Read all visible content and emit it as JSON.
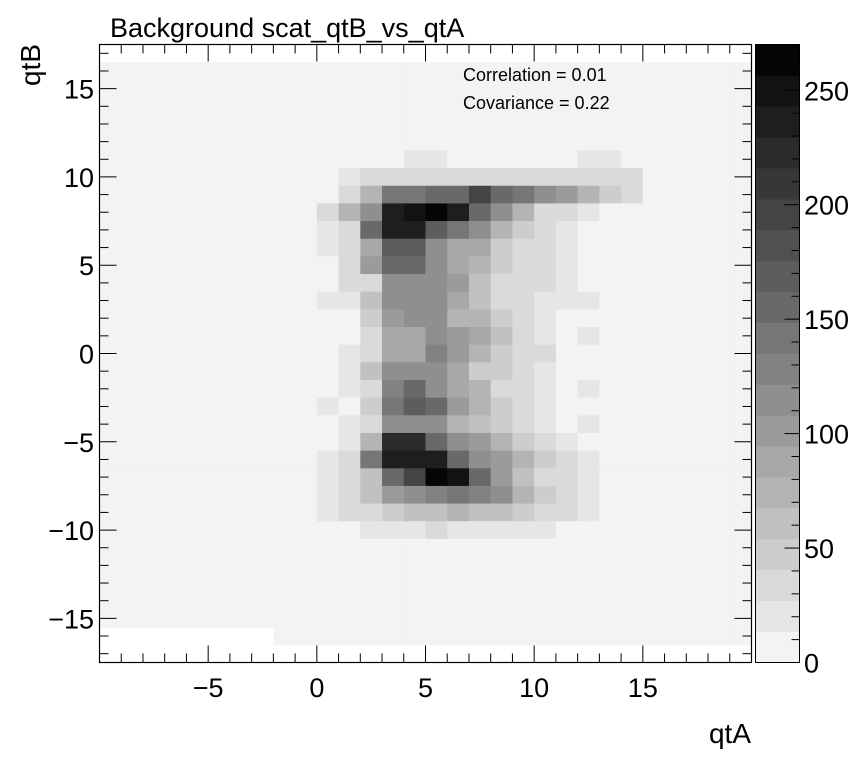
{
  "chart_data": {
    "type": "heatmap",
    "title": "Background scat_qtB_vs_qtA",
    "xlabel": "qtA",
    "ylabel": "qtB",
    "xlim": [
      -10,
      20
    ],
    "ylim": [
      -17.5,
      17.5
    ],
    "zlim": [
      0,
      270
    ],
    "x_ticks": [
      -5,
      0,
      5,
      10,
      15
    ],
    "y_ticks": [
      -15,
      -10,
      -5,
      0,
      5,
      10,
      15
    ],
    "z_ticks": [
      0,
      50,
      100,
      150,
      200,
      250
    ],
    "x_tick_labels": [
      "−5",
      "0",
      "5",
      "10",
      "15"
    ],
    "y_tick_labels": [
      "−15",
      "−10",
      "−5",
      "0",
      "5",
      "10",
      "15"
    ],
    "z_tick_labels": [
      "0",
      "50",
      "100",
      "150",
      "200",
      "250"
    ],
    "colormap": "grayscale",
    "palette_levels": 20,
    "annotations": [
      "Correlation = 0.01",
      "Covariance = 0.22"
    ],
    "x_bin_edges": [
      -10,
      -9,
      -8,
      -7,
      -6,
      -5,
      -4,
      -3,
      -2,
      -1,
      0,
      1,
      2,
      3,
      4,
      5,
      6,
      7,
      8,
      9,
      10,
      11,
      12,
      13,
      14,
      15,
      16,
      17,
      18,
      19,
      20
    ],
    "y_bin_edges": [
      -17.5,
      -16.5,
      -15.5,
      -14.5,
      -13.5,
      -12.5,
      -11.5,
      -10.5,
      -9.5,
      -8.5,
      -7.5,
      -6.5,
      -5.5,
      -4.5,
      -3.5,
      -2.5,
      -1.5,
      -0.5,
      0.5,
      1.5,
      2.5,
      3.5,
      4.5,
      5.5,
      6.5,
      7.5,
      8.5,
      9.5,
      10.5,
      11.5,
      12.5,
      13.5,
      14.5,
      15.5,
      16.5,
      17.5
    ],
    "z_note": "z rows ordered from top (y=17) to bottom (y=-17); columns from x=-9.5 to x=19.5",
    "z": [
      [
        0,
        0,
        0,
        0,
        0,
        0,
        0,
        0,
        0,
        0,
        0,
        0,
        0,
        0,
        0,
        0,
        0,
        0,
        0,
        0,
        0,
        0,
        0,
        0,
        0,
        0,
        0,
        0,
        0,
        0
      ],
      [
        1,
        1,
        1,
        1,
        1,
        1,
        1,
        1,
        1,
        1,
        1,
        1,
        4,
        1,
        1,
        1,
        1,
        1,
        1,
        1,
        1,
        1,
        1,
        1,
        1,
        1,
        1,
        1,
        1,
        1
      ],
      [
        1,
        1,
        1,
        1,
        1,
        1,
        1,
        1,
        1,
        1,
        1,
        1,
        1,
        1,
        1,
        1,
        1,
        1,
        1,
        1,
        1,
        1,
        1,
        1,
        1,
        1,
        1,
        1,
        1,
        1
      ],
      [
        1,
        1,
        1,
        1,
        1,
        4,
        4,
        4,
        4,
        4,
        1,
        1,
        1,
        1,
        1,
        1,
        1,
        1,
        1,
        1,
        1,
        1,
        1,
        1,
        1,
        1,
        1,
        1,
        1,
        1
      ],
      [
        4,
        4,
        4,
        4,
        4,
        1,
        1,
        1,
        1,
        4,
        4,
        4,
        4,
        4,
        4,
        4,
        4,
        4,
        4,
        4,
        4,
        4,
        4,
        4,
        4,
        4,
        4,
        4,
        4,
        4
      ],
      [
        4,
        4,
        4,
        1,
        4,
        4,
        4,
        4,
        4,
        4,
        4,
        4,
        4,
        4,
        4,
        4,
        4,
        4,
        4,
        4,
        4,
        4,
        4,
        4,
        4,
        4,
        1,
        4,
        4,
        4
      ],
      [
        4,
        1,
        4,
        4,
        4,
        4,
        4,
        4,
        4,
        4,
        12,
        12,
        12,
        12,
        20,
        20,
        12,
        12,
        12,
        12,
        12,
        12,
        20,
        20,
        12,
        4,
        4,
        4,
        4,
        4
      ],
      [
        4,
        4,
        4,
        4,
        4,
        4,
        4,
        4,
        4,
        4,
        12,
        20,
        30,
        30,
        30,
        30,
        30,
        30,
        30,
        30,
        30,
        30,
        30,
        40,
        30,
        4,
        4,
        4,
        4,
        4
      ],
      [
        1,
        4,
        4,
        4,
        4,
        4,
        4,
        4,
        4,
        12,
        12,
        40,
        70,
        140,
        140,
        160,
        160,
        190,
        150,
        140,
        120,
        100,
        80,
        50,
        40,
        4,
        1,
        4,
        4,
        4
      ],
      [
        4,
        4,
        4,
        1,
        4,
        1,
        4,
        4,
        4,
        12,
        40,
        70,
        110,
        240,
        255,
        270,
        235,
        150,
        120,
        70,
        40,
        30,
        20,
        12,
        4,
        4,
        1,
        4,
        4,
        4
      ],
      [
        1,
        4,
        4,
        4,
        4,
        1,
        4,
        4,
        4,
        12,
        20,
        40,
        150,
        235,
        235,
        170,
        140,
        120,
        70,
        50,
        30,
        20,
        12,
        12,
        4,
        4,
        4,
        4,
        4,
        4
      ],
      [
        4,
        4,
        4,
        4,
        4,
        4,
        4,
        4,
        4,
        12,
        20,
        30,
        90,
        170,
        170,
        120,
        90,
        90,
        50,
        40,
        30,
        20,
        12,
        12,
        4,
        4,
        4,
        4,
        4,
        4
      ],
      [
        4,
        4,
        4,
        4,
        4,
        1,
        4,
        4,
        4,
        4,
        12,
        30,
        100,
        160,
        160,
        110,
        90,
        70,
        50,
        40,
        30,
        20,
        12,
        12,
        12,
        4,
        4,
        4,
        4,
        4
      ],
      [
        4,
        1,
        4,
        4,
        4,
        1,
        4,
        4,
        4,
        4,
        12,
        30,
        40,
        110,
        110,
        110,
        100,
        60,
        40,
        40,
        30,
        20,
        12,
        12,
        4,
        4,
        4,
        4,
        1,
        4
      ],
      [
        1,
        4,
        4,
        4,
        4,
        4,
        4,
        4,
        4,
        4,
        20,
        20,
        60,
        120,
        120,
        110,
        90,
        60,
        40,
        40,
        20,
        20,
        20,
        12,
        12,
        4,
        4,
        4,
        4,
        4
      ],
      [
        4,
        4,
        1,
        1,
        1,
        4,
        4,
        4,
        4,
        4,
        12,
        12,
        50,
        100,
        110,
        110,
        80,
        80,
        50,
        30,
        20,
        12,
        12,
        12,
        4,
        4,
        4,
        4,
        4,
        4
      ],
      [
        4,
        1,
        1,
        1,
        1,
        4,
        4,
        4,
        4,
        4,
        12,
        12,
        30,
        90,
        90,
        120,
        100,
        90,
        60,
        30,
        20,
        12,
        20,
        12,
        4,
        4,
        4,
        4,
        4,
        4
      ],
      [
        4,
        1,
        1,
        1,
        4,
        4,
        4,
        4,
        4,
        4,
        12,
        20,
        30,
        90,
        90,
        130,
        100,
        70,
        50,
        30,
        30,
        12,
        12,
        12,
        12,
        4,
        4,
        4,
        4,
        4
      ],
      [
        4,
        4,
        1,
        1,
        4,
        4,
        4,
        4,
        4,
        4,
        12,
        20,
        60,
        110,
        110,
        110,
        90,
        50,
        50,
        40,
        20,
        12,
        12,
        12,
        4,
        4,
        4,
        4,
        4,
        4
      ],
      [
        1,
        4,
        4,
        4,
        4,
        4,
        4,
        4,
        4,
        4,
        12,
        20,
        40,
        130,
        150,
        120,
        90,
        70,
        40,
        40,
        20,
        12,
        20,
        12,
        4,
        4,
        4,
        4,
        4,
        4
      ],
      [
        4,
        1,
        4,
        4,
        4,
        4,
        4,
        4,
        4,
        4,
        20,
        12,
        50,
        140,
        170,
        160,
        100,
        70,
        50,
        40,
        20,
        12,
        12,
        12,
        12,
        4,
        4,
        4,
        4,
        4
      ],
      [
        1,
        4,
        4,
        4,
        4,
        4,
        4,
        4,
        4,
        4,
        12,
        20,
        30,
        120,
        120,
        110,
        70,
        60,
        50,
        30,
        20,
        12,
        20,
        12,
        4,
        4,
        4,
        4,
        4,
        4
      ],
      [
        1,
        4,
        4,
        4,
        4,
        4,
        4,
        4,
        4,
        12,
        12,
        20,
        80,
        220,
        220,
        160,
        120,
        100,
        70,
        50,
        30,
        20,
        12,
        12,
        4,
        4,
        4,
        4,
        4,
        4
      ],
      [
        4,
        4,
        4,
        4,
        4,
        4,
        1,
        4,
        4,
        12,
        20,
        40,
        140,
        230,
        230,
        230,
        160,
        120,
        100,
        70,
        50,
        30,
        20,
        12,
        4,
        4,
        4,
        4,
        4,
        4
      ],
      [
        4,
        4,
        4,
        4,
        4,
        4,
        4,
        4,
        1,
        4,
        20,
        40,
        60,
        150,
        200,
        270,
        255,
        150,
        100,
        60,
        40,
        30,
        20,
        12,
        4,
        4,
        4,
        4,
        4,
        4
      ],
      [
        4,
        4,
        4,
        4,
        4,
        1,
        4,
        4,
        4,
        4,
        20,
        40,
        60,
        100,
        110,
        130,
        140,
        130,
        110,
        80,
        50,
        40,
        20,
        12,
        12,
        4,
        4,
        4,
        4,
        4
      ],
      [
        4,
        4,
        4,
        4,
        4,
        4,
        4,
        4,
        4,
        12,
        20,
        30,
        40,
        50,
        60,
        60,
        70,
        60,
        60,
        50,
        40,
        30,
        20,
        12,
        4,
        4,
        4,
        4,
        4,
        4
      ],
      [
        4,
        4,
        4,
        4,
        4,
        4,
        4,
        4,
        4,
        12,
        12,
        12,
        20,
        20,
        20,
        30,
        20,
        20,
        20,
        20,
        20,
        12,
        12,
        12,
        4,
        4,
        4,
        4,
        4,
        4
      ],
      [
        4,
        4,
        4,
        4,
        4,
        1,
        4,
        4,
        4,
        4,
        12,
        12,
        12,
        12,
        12,
        12,
        12,
        12,
        12,
        12,
        12,
        12,
        12,
        12,
        4,
        4,
        4,
        4,
        4,
        4
      ],
      [
        4,
        4,
        4,
        4,
        4,
        4,
        4,
        4,
        4,
        4,
        4,
        4,
        12,
        12,
        12,
        12,
        12,
        12,
        12,
        12,
        12,
        4,
        4,
        4,
        4,
        4,
        4,
        4,
        4,
        4
      ],
      [
        1,
        4,
        4,
        4,
        4,
        4,
        4,
        4,
        4,
        4,
        4,
        4,
        4,
        4,
        4,
        4,
        4,
        4,
        4,
        4,
        4,
        4,
        4,
        4,
        4,
        4,
        4,
        4,
        4,
        4
      ],
      [
        1,
        4,
        4,
        4,
        4,
        4,
        4,
        4,
        4,
        4,
        4,
        4,
        4,
        4,
        4,
        4,
        4,
        4,
        4,
        4,
        4,
        4,
        4,
        4,
        4,
        4,
        4,
        4,
        4,
        4
      ],
      [
        1,
        1,
        1,
        1,
        1,
        4,
        4,
        4,
        4,
        4,
        4,
        4,
        4,
        4,
        4,
        1,
        4,
        4,
        1,
        4,
        4,
        1,
        1,
        1,
        1,
        1,
        1,
        1,
        1,
        1
      ],
      [
        0,
        0,
        0,
        0,
        0,
        0,
        0,
        0,
        4,
        4,
        4,
        4,
        4,
        1,
        1,
        1,
        1,
        1,
        1,
        1,
        1,
        1,
        1,
        1,
        1,
        1,
        1,
        1,
        1,
        1
      ],
      [
        0,
        0,
        0,
        0,
        0,
        0,
        0,
        0,
        0,
        0,
        0,
        0,
        0,
        0,
        0,
        0,
        0,
        0,
        0,
        0,
        0,
        0,
        0,
        0,
        0,
        0,
        0,
        0,
        0,
        0
      ]
    ]
  }
}
